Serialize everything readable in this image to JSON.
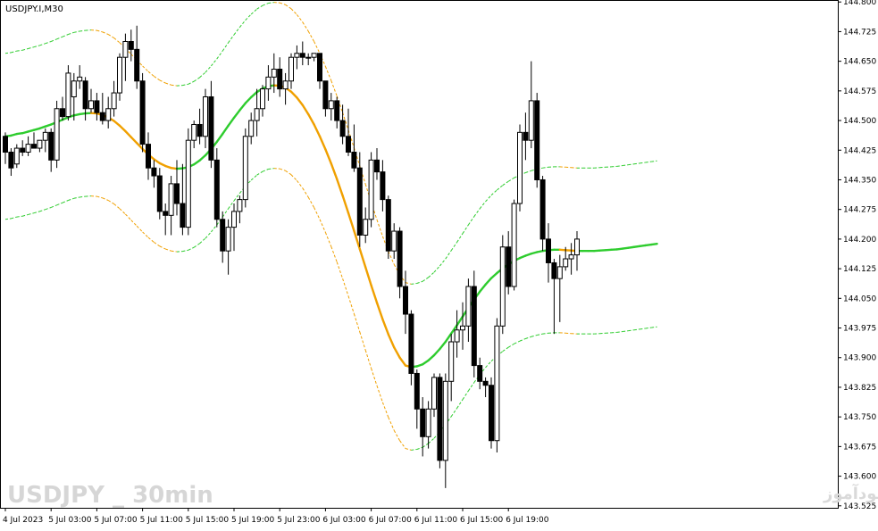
{
  "chart_data": {
    "type": "candlestick",
    "symbol_label": "USDJPY.I,M30",
    "y_ticks": [
      "144.800",
      "144.725",
      "144.650",
      "144.575",
      "144.500",
      "144.425",
      "144.350",
      "144.275",
      "144.200",
      "144.125",
      "144.050",
      "143.975",
      "143.900",
      "143.825",
      "143.750",
      "143.675",
      "143.600",
      "143.525"
    ],
    "ylim": [
      143.52,
      144.805
    ],
    "x_ticks": [
      "4 Jul 2023",
      "5 Jul 03:00",
      "5 Jul 07:00",
      "5 Jul 11:00",
      "5 Jul 15:00",
      "5 Jul 19:00",
      "5 Jul 23:00",
      "6 Jul 03:00",
      "6 Jul 07:00",
      "6 Jul 11:00",
      "6 Jul 15:00",
      "6 Jul 19:00"
    ],
    "bars_per_x_tick": 8,
    "grid": false,
    "candles": [
      [
        144.46,
        144.47,
        144.39,
        144.42
      ],
      [
        144.42,
        144.43,
        144.36,
        144.38
      ],
      [
        144.39,
        144.44,
        144.38,
        144.43
      ],
      [
        144.43,
        144.45,
        144.41,
        144.42
      ],
      [
        144.42,
        144.46,
        144.41,
        144.44
      ],
      [
        144.44,
        144.47,
        144.43,
        144.43
      ],
      [
        144.43,
        144.45,
        144.42,
        144.45
      ],
      [
        144.45,
        144.48,
        144.42,
        144.47
      ],
      [
        144.47,
        144.48,
        144.37,
        144.4
      ],
      [
        144.4,
        144.55,
        144.38,
        144.53
      ],
      [
        144.53,
        144.56,
        144.5,
        144.51
      ],
      [
        144.51,
        144.64,
        144.5,
        144.62
      ],
      [
        144.56,
        144.62,
        144.5,
        144.6
      ],
      [
        144.6,
        144.64,
        144.58,
        144.61
      ],
      [
        144.6,
        144.61,
        144.5,
        144.53
      ],
      [
        144.53,
        144.58,
        144.52,
        144.55
      ],
      [
        144.55,
        144.57,
        144.5,
        144.52
      ],
      [
        144.52,
        144.57,
        144.49,
        144.5
      ],
      [
        144.5,
        144.56,
        144.48,
        144.53
      ],
      [
        144.53,
        144.6,
        144.51,
        144.57
      ],
      [
        144.57,
        144.67,
        144.55,
        144.66
      ],
      [
        144.66,
        144.72,
        144.6,
        144.7
      ],
      [
        144.7,
        144.73,
        144.65,
        144.68
      ],
      [
        144.68,
        144.74,
        144.58,
        144.6
      ],
      [
        144.6,
        144.62,
        144.42,
        144.44
      ],
      [
        144.44,
        144.47,
        144.35,
        144.38
      ],
      [
        144.38,
        144.4,
        144.33,
        144.36
      ],
      [
        144.36,
        144.38,
        144.25,
        144.27
      ],
      [
        144.27,
        144.29,
        144.21,
        144.26
      ],
      [
        144.26,
        144.36,
        144.21,
        144.34
      ],
      [
        144.34,
        144.4,
        144.26,
        144.29
      ],
      [
        144.29,
        144.39,
        144.21,
        144.23
      ],
      [
        144.23,
        144.48,
        144.21,
        144.45
      ],
      [
        144.45,
        144.5,
        144.43,
        144.49
      ],
      [
        144.49,
        144.53,
        144.44,
        144.46
      ],
      [
        144.46,
        144.58,
        144.43,
        144.56
      ],
      [
        144.56,
        144.6,
        144.38,
        144.4
      ],
      [
        144.4,
        144.43,
        144.23,
        144.25
      ],
      [
        144.25,
        144.27,
        144.14,
        144.17
      ],
      [
        144.17,
        144.25,
        144.11,
        144.23
      ],
      [
        144.23,
        144.29,
        144.17,
        144.27
      ],
      [
        144.27,
        144.31,
        144.24,
        144.3
      ],
      [
        144.3,
        144.48,
        144.28,
        144.46
      ],
      [
        144.46,
        144.52,
        144.44,
        144.5
      ],
      [
        144.5,
        144.58,
        144.46,
        144.53
      ],
      [
        144.53,
        144.59,
        144.51,
        144.58
      ],
      [
        144.58,
        144.64,
        144.55,
        144.61
      ],
      [
        144.61,
        144.67,
        144.57,
        144.63
      ],
      [
        144.63,
        144.66,
        144.56,
        144.58
      ],
      [
        144.58,
        144.62,
        144.54,
        144.6
      ],
      [
        144.6,
        144.67,
        144.58,
        144.66
      ],
      [
        144.66,
        144.69,
        144.63,
        144.67
      ],
      [
        144.67,
        144.7,
        144.64,
        144.66
      ],
      [
        144.66,
        144.67,
        144.64,
        144.66
      ],
      [
        144.66,
        144.67,
        144.65,
        144.67
      ],
      [
        144.67,
        144.67,
        144.58,
        144.6
      ],
      [
        144.6,
        144.6,
        144.51,
        144.53
      ],
      [
        144.53,
        144.57,
        144.5,
        144.55
      ],
      [
        144.55,
        144.56,
        144.48,
        144.5
      ],
      [
        144.5,
        144.54,
        144.44,
        144.46
      ],
      [
        144.46,
        144.53,
        144.41,
        144.42
      ],
      [
        144.42,
        144.49,
        144.37,
        144.38
      ],
      [
        144.38,
        144.42,
        144.18,
        144.21
      ],
      [
        144.21,
        144.28,
        144.19,
        144.25
      ],
      [
        144.25,
        144.42,
        144.23,
        144.4
      ],
      [
        144.4,
        144.43,
        144.35,
        144.37
      ],
      [
        144.37,
        144.4,
        144.27,
        144.3
      ],
      [
        144.3,
        144.31,
        144.15,
        144.17
      ],
      [
        144.17,
        144.24,
        144.15,
        144.22
      ],
      [
        144.22,
        144.23,
        144.05,
        144.08
      ],
      [
        144.08,
        144.12,
        143.96,
        144.01
      ],
      [
        144.01,
        144.02,
        143.83,
        143.86
      ],
      [
        143.86,
        143.87,
        143.72,
        143.77
      ],
      [
        143.77,
        143.8,
        143.65,
        143.7
      ],
      [
        143.7,
        143.79,
        143.67,
        143.77
      ],
      [
        143.77,
        143.86,
        143.75,
        143.85
      ],
      [
        143.85,
        143.86,
        143.62,
        143.64
      ],
      [
        143.64,
        143.86,
        143.57,
        143.84
      ],
      [
        143.84,
        143.96,
        143.79,
        143.94
      ],
      [
        143.94,
        144.02,
        143.9,
        143.97
      ],
      [
        143.97,
        144.04,
        143.92,
        143.98
      ],
      [
        143.98,
        144.1,
        143.94,
        144.08
      ],
      [
        144.08,
        144.12,
        143.85,
        143.88
      ],
      [
        143.88,
        143.9,
        143.82,
        143.84
      ],
      [
        143.84,
        143.85,
        143.8,
        143.83
      ],
      [
        143.83,
        143.85,
        143.67,
        143.69
      ],
      [
        143.69,
        144.0,
        143.66,
        143.98
      ],
      [
        143.98,
        144.21,
        143.96,
        144.18
      ],
      [
        144.18,
        144.22,
        144.06,
        144.08
      ],
      [
        144.08,
        144.3,
        144.07,
        144.29
      ],
      [
        144.29,
        144.49,
        144.27,
        144.47
      ],
      [
        144.47,
        144.52,
        144.4,
        144.45
      ],
      [
        144.45,
        144.65,
        144.43,
        144.55
      ],
      [
        144.55,
        144.57,
        144.33,
        144.35
      ],
      [
        144.35,
        144.36,
        144.17,
        144.2
      ],
      [
        144.2,
        144.24,
        144.09,
        144.14
      ],
      [
        144.14,
        144.15,
        143.96,
        144.1
      ],
      [
        144.1,
        144.16,
        143.99,
        144.13
      ],
      [
        144.13,
        144.18,
        144.12,
        144.15
      ],
      [
        144.15,
        144.19,
        144.11,
        144.16
      ],
      [
        144.16,
        144.22,
        144.12,
        144.2
      ]
    ],
    "ma": [
      144.46,
      144.462,
      144.466,
      144.468,
      144.472,
      144.476,
      144.48,
      144.485,
      144.49,
      144.496,
      144.502,
      144.508,
      144.513,
      144.516,
      144.518,
      144.519,
      144.518,
      144.514,
      144.508,
      144.499,
      144.487,
      144.473,
      144.458,
      144.443,
      144.428,
      144.414,
      144.402,
      144.392,
      144.385,
      144.38,
      144.378,
      144.379,
      144.382,
      144.389,
      144.399,
      144.412,
      144.428,
      144.446,
      144.466,
      144.487,
      144.507,
      144.526,
      144.544,
      144.559,
      144.572,
      144.581,
      144.587,
      144.589,
      144.588,
      144.583,
      144.573,
      144.558,
      144.539,
      144.516,
      144.49,
      144.46,
      144.427,
      144.391,
      144.352,
      144.31,
      144.266,
      144.221,
      144.175,
      144.129,
      144.083,
      144.039,
      143.997,
      143.959,
      143.926,
      143.9,
      143.88,
      143.876,
      143.878,
      143.883,
      143.893,
      143.906,
      143.922,
      143.94,
      143.961,
      143.982,
      144.004,
      144.026,
      144.047,
      144.067,
      144.085,
      144.101,
      144.114,
      144.126,
      144.136,
      144.145,
      144.152,
      144.158,
      144.163,
      144.167,
      144.17,
      144.172,
      144.173,
      144.173,
      144.172,
      144.171,
      144.17,
      144.17,
      144.17,
      144.17,
      144.171,
      144.172,
      144.173,
      144.174,
      144.176,
      144.178,
      144.18,
      144.182,
      144.184,
      144.186,
      144.188
    ],
    "band_width": 0.21,
    "line_colors": {
      "rising": "#2ecc2e",
      "falling": "#f0a000"
    },
    "watermark_left": "USDJPY _ 30min",
    "watermark_right": "انتشار در سایت سودآموز"
  }
}
